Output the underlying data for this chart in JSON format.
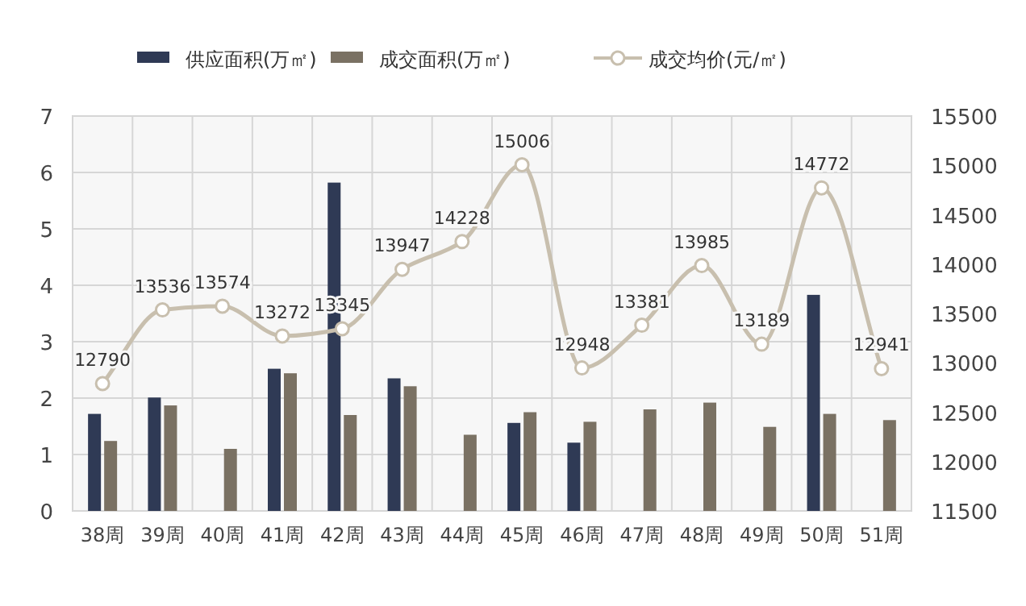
{
  "chart_data": {
    "type": "bar",
    "categories": [
      "38周",
      "39周",
      "40周",
      "41周",
      "42周",
      "43周",
      "44周",
      "45周",
      "46周",
      "47周",
      "48周",
      "49周",
      "50周",
      "51周"
    ],
    "series": [
      {
        "name": "供应面积(万㎡)",
        "color": "#2f3a55",
        "values": [
          1.72,
          2.01,
          null,
          2.52,
          5.82,
          2.35,
          null,
          1.56,
          1.21,
          null,
          null,
          null,
          3.83,
          null
        ]
      },
      {
        "name": "成交面积(万㎡)",
        "color": "#7a7163",
        "values": [
          1.24,
          1.87,
          1.1,
          2.44,
          1.7,
          2.21,
          1.35,
          1.75,
          1.58,
          1.8,
          1.92,
          1.49,
          1.72,
          1.61
        ]
      },
      {
        "name": "成交均价(元/㎡)",
        "type": "line",
        "axis": "y2",
        "color": "#c8bfae",
        "values": [
          12790,
          13536,
          13574,
          13272,
          13345,
          13947,
          14228,
          15006,
          12948,
          13381,
          13985,
          13189,
          14772,
          12941
        ],
        "value_labels": [
          "12790",
          "13536",
          "13574",
          "13272",
          "13345",
          "13947",
          "14228",
          "15006",
          "12948",
          "13381",
          "13985",
          "13189",
          "14772",
          "12941"
        ]
      }
    ],
    "ylim": [
      0,
      7
    ],
    "yticks": [
      0,
      1,
      2,
      3,
      4,
      5,
      6,
      7
    ],
    "y2lim": [
      11500,
      15500
    ],
    "y2ticks": [
      11500,
      12000,
      12500,
      13000,
      13500,
      14000,
      14500,
      15000,
      15500
    ],
    "grid": true,
    "legend": "top",
    "marker": "circle"
  }
}
